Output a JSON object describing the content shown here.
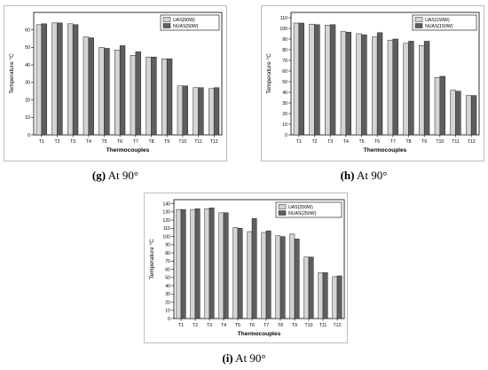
{
  "panels": [
    {
      "caption": {
        "letter": "(g)",
        "text": " At 90°"
      }
    },
    {
      "caption": {
        "letter": "(h)",
        "text": " At 90°"
      }
    },
    {
      "caption": {
        "letter": "(i)",
        "text": " At 90°"
      }
    }
  ],
  "chart_data": [
    {
      "type": "bar",
      "xlabel": "Thermocouples",
      "ylabel": "Temperature °C",
      "ylim": [
        0,
        70
      ],
      "yticks": [
        0,
        10,
        20,
        30,
        40,
        50,
        60
      ],
      "categories": [
        "T1",
        "T2",
        "T3",
        "T4",
        "T5",
        "T6",
        "T7",
        "T8",
        "T9",
        "T10",
        "T11",
        "T12"
      ],
      "legend_position": "top-right",
      "series": [
        {
          "name": "UAS(50W)",
          "color": "#d4d4d4",
          "values": [
            63,
            64,
            63.5,
            56,
            50,
            48.5,
            45.5,
            44.5,
            43.5,
            28,
            27,
            26.5
          ]
        },
        {
          "name": "NUAS(50W)",
          "color": "#5e5e5e",
          "values": [
            63.5,
            64,
            63,
            55.5,
            49.5,
            51,
            47.5,
            44.5,
            43.5,
            28,
            27,
            27
          ]
        }
      ]
    },
    {
      "type": "bar",
      "xlabel": "Thermocouples",
      "ylabel": "Temperature °C",
      "ylim": [
        0,
        115
      ],
      "yticks": [
        0,
        10,
        20,
        30,
        40,
        50,
        60,
        70,
        80,
        90,
        100,
        110
      ],
      "categories": [
        "T1",
        "T2",
        "T3",
        "T4",
        "T5",
        "T6",
        "T7",
        "T8",
        "T9",
        "T10",
        "T11",
        "T12"
      ],
      "legend_position": "top-right",
      "series": [
        {
          "name": "UAS(150W)",
          "color": "#d4d4d4",
          "values": [
            105,
            104,
            103,
            97,
            95,
            92,
            89,
            86,
            84,
            54,
            42,
            37
          ]
        },
        {
          "name": "NUAS(150W)",
          "color": "#5e5e5e",
          "values": [
            105,
            103.5,
            103.5,
            96.5,
            94,
            96,
            90,
            88,
            88,
            55,
            41,
            37
          ]
        }
      ]
    },
    {
      "type": "bar",
      "xlabel": "Thermocouples",
      "ylabel": "Temperature °C",
      "ylim": [
        0,
        145
      ],
      "yticks": [
        0,
        10,
        20,
        30,
        40,
        50,
        60,
        70,
        80,
        90,
        100,
        110,
        120,
        130,
        140
      ],
      "categories": [
        "T1",
        "T2",
        "T3",
        "T4",
        "T5",
        "T6",
        "T7",
        "T8",
        "T9",
        "T10",
        "T11",
        "T12"
      ],
      "legend_position": "top-right",
      "series": [
        {
          "name": "UAS(250W)",
          "color": "#d4d4d4",
          "values": [
            133,
            133,
            134,
            129,
            111,
            106,
            105,
            101,
            103,
            75,
            56,
            51
          ]
        },
        {
          "name": "NUAS(250W)",
          "color": "#5e5e5e",
          "values": [
            133,
            134,
            135,
            129,
            110,
            122,
            107,
            100,
            97,
            75,
            56,
            52
          ]
        }
      ]
    }
  ]
}
